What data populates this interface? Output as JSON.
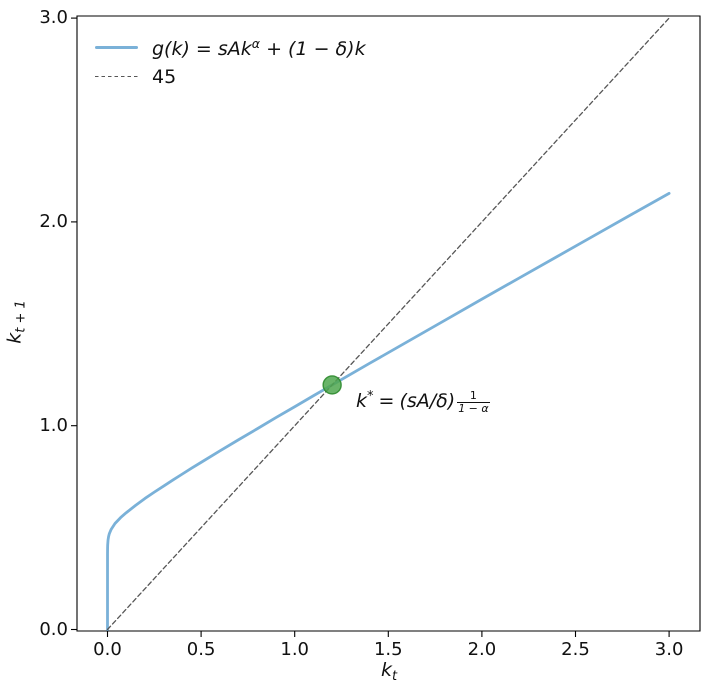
{
  "legend": {
    "g": {
      "pre": "g(k) = sAk",
      "sup": "α",
      "post": " + (1 − δ)k"
    },
    "line45": {
      "label": "45"
    }
  },
  "annotation": {
    "k": "k",
    "star": "*",
    "eq": "=",
    "expr": "(sA/δ)",
    "frac": {
      "num": "1",
      "den": "1 − α"
    }
  },
  "axes": {
    "xlabel": {
      "base": "k",
      "sub": "t"
    },
    "ylabel": {
      "base": "k",
      "sub": "t + 1"
    }
  },
  "chart_data": {
    "type": "line",
    "title": "",
    "xlabel": "k_t",
    "ylabel": "k_{t+1}",
    "xlim": [
      -0.16,
      3.17
    ],
    "ylim": [
      0,
      3.0
    ],
    "grid": false,
    "legend_position": "upper left",
    "x_ticks": {
      "values": [
        0,
        0.5,
        1.0,
        1.5,
        2.0,
        2.5,
        3.0
      ],
      "labels": [
        "0.0",
        "0.5",
        "1.0",
        "1.5",
        "2.0",
        "2.5",
        "3.0"
      ]
    },
    "y_ticks": {
      "values": [
        0,
        1.0,
        2.0,
        3.0
      ],
      "labels": [
        "0.0",
        "1.0",
        "2.0",
        "3.0"
      ]
    },
    "series": [
      {
        "name": "g(k) = sAk^α + (1 − δ)k",
        "style": "solid",
        "color": "#7ab1d8",
        "width": 2.8,
        "x": [
          0,
          0.0001,
          0.0005,
          0.001,
          0.003,
          0.006,
          0.01,
          0.02,
          0.04,
          0.07,
          0.1,
          0.15,
          0.2,
          0.25,
          0.3,
          0.35,
          0.4,
          0.45,
          0.5,
          0.6,
          0.7,
          0.8,
          0.9,
          1.0,
          1.1,
          1.2,
          1.4,
          1.6,
          1.8,
          2.0,
          2.2,
          2.4,
          2.6,
          2.8,
          3.0
        ],
        "y": [
          0,
          0.37,
          0.401,
          0.416,
          0.44,
          0.457,
          0.471,
          0.492,
          0.52,
          0.549,
          0.573,
          0.609,
          0.643,
          0.674,
          0.704,
          0.734,
          0.763,
          0.792,
          0.82,
          0.876,
          0.931,
          0.985,
          1.04,
          1.093,
          1.147,
          1.2,
          1.306,
          1.411,
          1.516,
          1.621,
          1.725,
          1.829,
          1.933,
          2.037,
          2.14
        ]
      },
      {
        "name": "45",
        "style": "dashed",
        "color": "#565656",
        "width": 1.3,
        "x": [
          0,
          3.0
        ],
        "y": [
          0,
          3.0
        ]
      }
    ],
    "points": [
      {
        "name": "steady-state",
        "x": 1.2,
        "y": 1.2,
        "label": "k* = (sA/δ)^(1/(1−α))",
        "color": "#4fa74f",
        "edge": "#2e8b2e",
        "radius": 9
      }
    ]
  }
}
